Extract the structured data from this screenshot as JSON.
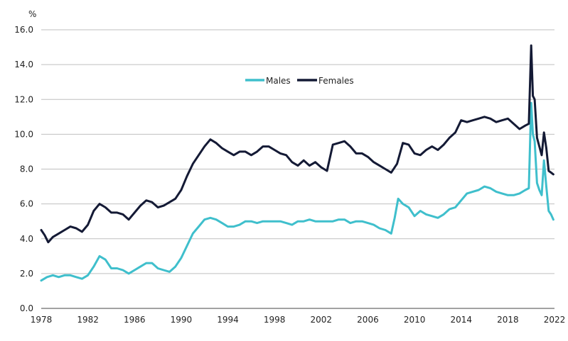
{
  "chart_data": {
    "type": "line",
    "title": "",
    "xlabel": "",
    "ylabel": "%",
    "xlim": [
      1978,
      2022
    ],
    "ylim": [
      0,
      16
    ],
    "x_ticks": [
      "1978",
      "1982",
      "1986",
      "1990",
      "1994",
      "1998",
      "2002",
      "2006",
      "2010",
      "2014",
      "2018",
      "2022"
    ],
    "y_ticks": [
      "0.0",
      "2.0",
      "4.0",
      "6.0",
      "8.0",
      "10.0",
      "12.0",
      "14.0",
      "16.0"
    ],
    "grid": "horizontal",
    "legend_position": "top-center",
    "series": [
      {
        "name": "Males",
        "color": "#3fbfcc",
        "x": [
          1978.0,
          1978.5,
          1979.0,
          1979.5,
          1980.0,
          1980.5,
          1981.0,
          1981.5,
          1982.0,
          1982.5,
          1983.0,
          1983.5,
          1984.0,
          1984.5,
          1985.0,
          1985.5,
          1986.0,
          1986.5,
          1987.0,
          1987.5,
          1988.0,
          1988.5,
          1989.0,
          1989.5,
          1990.0,
          1990.5,
          1991.0,
          1991.5,
          1992.0,
          1992.5,
          1993.0,
          1993.5,
          1994.0,
          1994.5,
          1995.0,
          1995.5,
          1996.0,
          1996.5,
          1997.0,
          1997.5,
          1998.0,
          1998.5,
          1999.0,
          1999.5,
          2000.0,
          2000.5,
          2001.0,
          2001.5,
          2002.0,
          2002.5,
          2003.0,
          2003.5,
          2004.0,
          2004.5,
          2005.0,
          2005.5,
          2006.0,
          2006.5,
          2007.0,
          2007.5,
          2008.0,
          2008.3,
          2008.6,
          2009.0,
          2009.5,
          2010.0,
          2010.5,
          2011.0,
          2011.5,
          2012.0,
          2012.5,
          2013.0,
          2013.5,
          2014.0,
          2014.5,
          2015.0,
          2015.5,
          2016.0,
          2016.5,
          2017.0,
          2017.5,
          2018.0,
          2018.5,
          2019.0,
          2019.5,
          2019.8,
          2020.0,
          2020.15,
          2020.3,
          2020.5,
          2020.7,
          2020.9,
          2021.1,
          2021.3,
          2021.5,
          2021.7,
          2021.9
        ],
        "values": [
          1.6,
          1.8,
          1.9,
          1.8,
          1.9,
          1.9,
          1.8,
          1.7,
          1.9,
          2.4,
          3.0,
          2.8,
          2.3,
          2.3,
          2.2,
          2.0,
          2.2,
          2.4,
          2.6,
          2.6,
          2.3,
          2.2,
          2.1,
          2.4,
          2.9,
          3.6,
          4.3,
          4.7,
          5.1,
          5.2,
          5.1,
          4.9,
          4.7,
          4.7,
          4.8,
          5.0,
          5.0,
          4.9,
          5.0,
          5.0,
          5.0,
          5.0,
          4.9,
          4.8,
          5.0,
          5.0,
          5.1,
          5.0,
          5.0,
          5.0,
          5.0,
          5.1,
          5.1,
          4.9,
          5.0,
          5.0,
          4.9,
          4.8,
          4.6,
          4.5,
          4.3,
          5.2,
          6.3,
          6.0,
          5.8,
          5.3,
          5.6,
          5.4,
          5.3,
          5.2,
          5.4,
          5.7,
          5.8,
          6.2,
          6.6,
          6.7,
          6.8,
          7.0,
          6.9,
          6.7,
          6.6,
          6.5,
          6.5,
          6.6,
          6.8,
          6.9,
          11.8,
          10.0,
          9.6,
          7.2,
          6.8,
          6.5,
          8.5,
          7.0,
          5.6,
          5.4,
          5.1
        ]
      },
      {
        "name": "Females",
        "color": "#141a35",
        "x": [
          1978.0,
          1978.3,
          1978.6,
          1979.0,
          1979.5,
          1980.0,
          1980.5,
          1981.0,
          1981.5,
          1982.0,
          1982.5,
          1983.0,
          1983.5,
          1984.0,
          1984.5,
          1985.0,
          1985.5,
          1986.0,
          1986.5,
          1987.0,
          1987.5,
          1988.0,
          1988.5,
          1989.0,
          1989.5,
          1990.0,
          1990.5,
          1991.0,
          1991.5,
          1992.0,
          1992.5,
          1993.0,
          1993.5,
          1994.0,
          1994.5,
          1995.0,
          1995.5,
          1996.0,
          1996.5,
          1997.0,
          1997.5,
          1998.0,
          1998.5,
          1999.0,
          1999.5,
          2000.0,
          2000.5,
          2001.0,
          2001.5,
          2002.0,
          2002.5,
          2003.0,
          2003.5,
          2004.0,
          2004.5,
          2005.0,
          2005.5,
          2006.0,
          2006.5,
          2007.0,
          2007.5,
          2008.0,
          2008.5,
          2009.0,
          2009.5,
          2010.0,
          2010.5,
          2011.0,
          2011.5,
          2012.0,
          2012.5,
          2013.0,
          2013.5,
          2014.0,
          2014.5,
          2015.0,
          2015.5,
          2016.0,
          2016.5,
          2017.0,
          2017.5,
          2018.0,
          2018.5,
          2019.0,
          2019.5,
          2019.8,
          2020.0,
          2020.15,
          2020.3,
          2020.5,
          2020.7,
          2020.9,
          2021.1,
          2021.3,
          2021.5,
          2021.7,
          2021.9
        ],
        "values": [
          4.5,
          4.2,
          3.8,
          4.1,
          4.3,
          4.5,
          4.7,
          4.6,
          4.4,
          4.8,
          5.6,
          6.0,
          5.8,
          5.5,
          5.5,
          5.4,
          5.1,
          5.5,
          5.9,
          6.2,
          6.1,
          5.8,
          5.9,
          6.1,
          6.3,
          6.8,
          7.6,
          8.3,
          8.8,
          9.3,
          9.7,
          9.5,
          9.2,
          9.0,
          8.8,
          9.0,
          9.0,
          8.8,
          9.0,
          9.3,
          9.3,
          9.1,
          8.9,
          8.8,
          8.4,
          8.2,
          8.5,
          8.2,
          8.4,
          8.1,
          7.9,
          9.4,
          9.5,
          9.6,
          9.3,
          8.9,
          8.9,
          8.7,
          8.4,
          8.2,
          8.0,
          7.8,
          8.3,
          9.5,
          9.4,
          8.9,
          8.8,
          9.1,
          9.3,
          9.1,
          9.4,
          9.8,
          10.1,
          10.8,
          10.7,
          10.8,
          10.9,
          11.0,
          10.9,
          10.7,
          10.8,
          10.9,
          10.6,
          10.3,
          10.5,
          10.6,
          15.1,
          12.2,
          12.0,
          9.8,
          9.3,
          8.8,
          10.1,
          9.2,
          7.9,
          7.8,
          7.7
        ]
      }
    ]
  }
}
